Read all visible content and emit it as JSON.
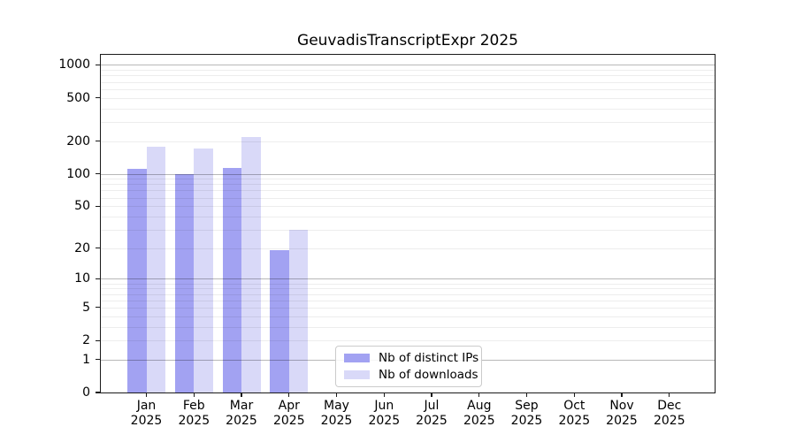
{
  "chart_data": {
    "type": "bar",
    "title": "GeuvadisTranscriptExpr 2025",
    "categories": [
      "Jan",
      "Feb",
      "Mar",
      "Apr",
      "May",
      "Jun",
      "Jul",
      "Aug",
      "Sep",
      "Oct",
      "Nov",
      "Dec"
    ],
    "year_label": "2025",
    "series": [
      {
        "name": "Nb of distinct IPs",
        "color": "#a2a2f2",
        "values": [
          111,
          100,
          114,
          19,
          0,
          0,
          0,
          0,
          0,
          0,
          0,
          0
        ]
      },
      {
        "name": "Nb of downloads",
        "color": "#d9d9f8",
        "values": [
          177,
          170,
          218,
          30,
          0,
          0,
          0,
          0,
          0,
          0,
          0,
          0
        ]
      }
    ],
    "y_ticks": [
      0,
      1,
      2,
      5,
      10,
      20,
      50,
      100,
      200,
      500,
      1000
    ],
    "y_scale": "log10(value+1)",
    "ylim": [
      0,
      1285
    ],
    "xlabel": "",
    "ylabel": "",
    "grid": "horizontal major and minor lines drawn above bars",
    "legend_position": "bottom-center inside plot",
    "colors": {
      "major_grid": "#b6b6b6",
      "minor_grid": "#ededed",
      "spine": "#1a1a1a",
      "background": "#ffffff"
    }
  }
}
